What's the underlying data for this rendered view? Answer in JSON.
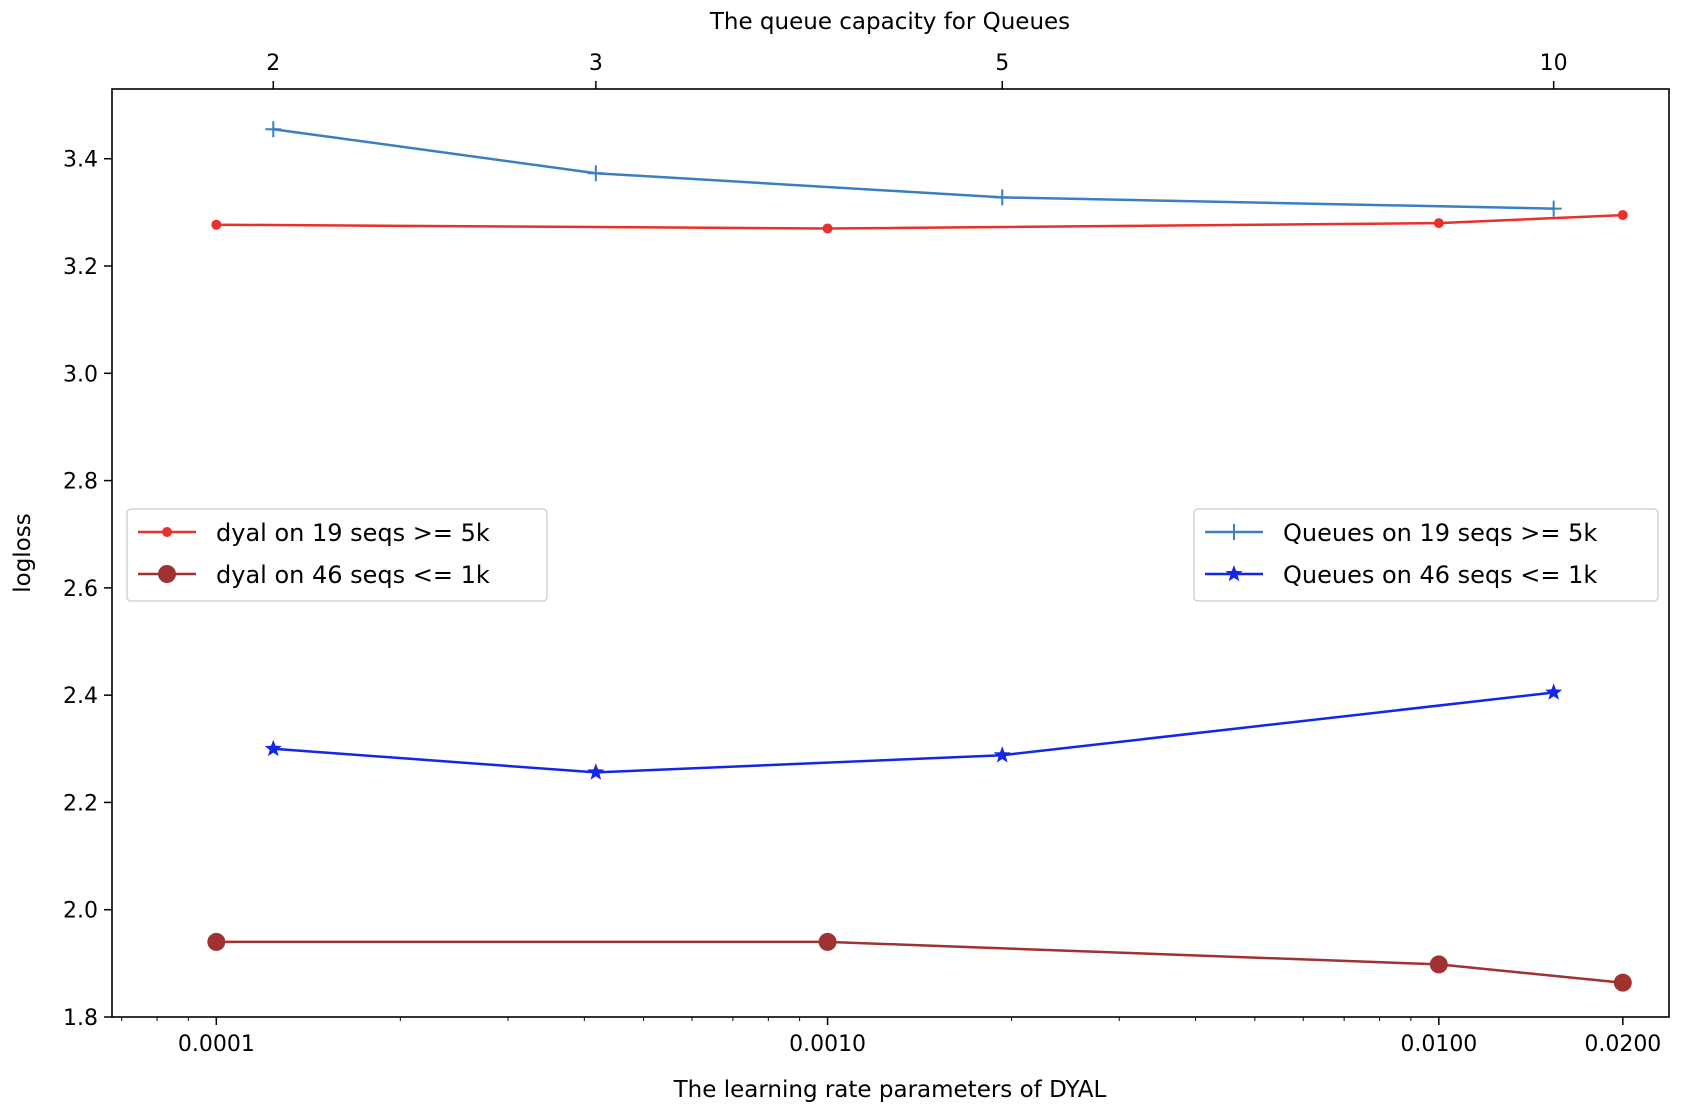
{
  "chart_data": {
    "type": "line",
    "top_xlabel": "The queue capacity for Queues",
    "xlabel": "The learning rate parameters of DYAL",
    "ylabel": "logloss",
    "bottom_axis": {
      "scale": "log",
      "xlim": [
        6.75e-05,
        0.0238
      ],
      "ticks": [
        0.0001,
        0.001,
        0.01,
        0.02
      ],
      "tick_labels": [
        "0.0001",
        "0.0010",
        "0.0100",
        "0.0200"
      ]
    },
    "top_axis": {
      "scale": "log-spaced categorical",
      "xlim": [
        1.633,
        11.56
      ],
      "ticks": [
        2,
        3,
        5,
        10
      ],
      "tick_labels": [
        "2",
        "3",
        "5",
        "10"
      ]
    },
    "y_axis": {
      "ylim": [
        1.8,
        3.53
      ],
      "ticks": [
        1.8,
        2.0,
        2.2,
        2.4,
        2.6,
        2.8,
        3.0,
        3.2,
        3.4
      ],
      "tick_labels": [
        "1.8",
        "2.0",
        "2.2",
        "2.4",
        "2.6",
        "2.8",
        "3.0",
        "3.2",
        "3.4"
      ]
    },
    "series": [
      {
        "name": "dyal on 19 seqs >= 5k",
        "axis": "bottom",
        "color": "#e8312b",
        "marker": "small-dot",
        "x": [
          0.0001,
          0.001,
          0.01,
          0.02
        ],
        "y": [
          3.277,
          3.27,
          3.28,
          3.295
        ]
      },
      {
        "name": "dyal on 46 seqs <= 1k",
        "axis": "bottom",
        "color": "#a03232",
        "marker": "large-dot",
        "x": [
          0.0001,
          0.001,
          0.01,
          0.02
        ],
        "y": [
          1.94,
          1.94,
          1.898,
          1.864
        ]
      },
      {
        "name": "Queues on 19 seqs >= 5k",
        "axis": "top",
        "color": "#3a7fc1",
        "marker": "plus",
        "x": [
          2,
          3,
          5,
          10
        ],
        "y": [
          3.455,
          3.373,
          3.328,
          3.307
        ]
      },
      {
        "name": "Queues on 46 seqs <= 1k",
        "axis": "top",
        "color": "#1427e8",
        "marker": "star",
        "x": [
          2,
          3,
          5,
          10
        ],
        "y": [
          2.3,
          2.256,
          2.288,
          2.405
        ]
      }
    ],
    "legends": [
      {
        "placement": "center-left",
        "entries": [
          "dyal on 19 seqs >= 5k",
          "dyal on 46 seqs <= 1k"
        ]
      },
      {
        "placement": "center-right",
        "entries": [
          "Queues on 19 seqs >= 5k",
          "Queues on 46 seqs <= 1k"
        ]
      }
    ],
    "grid": false
  }
}
